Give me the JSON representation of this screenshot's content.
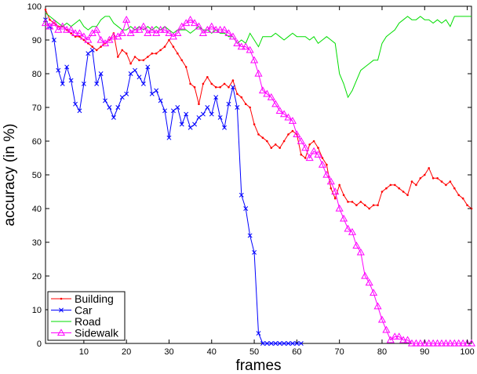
{
  "chart_data": {
    "type": "line",
    "xlabel": "frames",
    "ylabel": "accuracy (in %)",
    "xlim": [
      1,
      101
    ],
    "ylim": [
      0,
      100
    ],
    "x_ticks": [
      10,
      20,
      30,
      40,
      50,
      60,
      70,
      80,
      90,
      100
    ],
    "y_ticks": [
      0,
      10,
      20,
      30,
      40,
      50,
      60,
      70,
      80,
      90,
      100
    ],
    "grid": false,
    "legend_position": "bottom-left",
    "series": [
      {
        "name": "Building",
        "color": "#ff0000",
        "marker": "dot",
        "x": [
          1,
          2,
          3,
          4,
          5,
          6,
          7,
          8,
          9,
          10,
          11,
          12,
          13,
          14,
          15,
          16,
          17,
          18,
          19,
          20,
          21,
          22,
          23,
          24,
          25,
          26,
          27,
          28,
          29,
          30,
          31,
          32,
          33,
          34,
          35,
          36,
          37,
          38,
          39,
          40,
          41,
          42,
          43,
          44,
          45,
          46,
          47,
          48,
          49,
          50,
          51,
          52,
          53,
          54,
          55,
          56,
          57,
          58,
          59,
          60,
          61,
          62,
          63,
          64,
          65,
          66,
          67,
          68,
          69,
          70,
          71,
          72,
          73,
          74,
          75,
          76,
          77,
          78,
          79,
          80,
          81,
          82,
          83,
          84,
          85,
          86,
          87,
          88,
          89,
          90,
          91,
          92,
          93,
          94,
          95,
          96,
          97,
          98,
          99,
          100,
          101
        ],
        "y": [
          99,
          96,
          95,
          94,
          94,
          93,
          92,
          91,
          91,
          90,
          89,
          88,
          87,
          88,
          89,
          90,
          92,
          85,
          87,
          86,
          83,
          85,
          84,
          84,
          85,
          86,
          86,
          87,
          88,
          90,
          88,
          86,
          84,
          82,
          77,
          76,
          71,
          77,
          79,
          77,
          76,
          76,
          77,
          76,
          78,
          74,
          73,
          71,
          70,
          65,
          62,
          61,
          60,
          58,
          59,
          58,
          60,
          62,
          63,
          62,
          56,
          55,
          59,
          60,
          58,
          55,
          53,
          46,
          43,
          47,
          44,
          42,
          42,
          41,
          42,
          41,
          40,
          41,
          41,
          45,
          46,
          47,
          47,
          46,
          45,
          44,
          48,
          47,
          49,
          50,
          52,
          49,
          49,
          48,
          47,
          48,
          46,
          44,
          43,
          41,
          40
        ]
      },
      {
        "name": "Car",
        "color": "#0000ff",
        "marker": "x",
        "x": [
          1,
          2,
          3,
          4,
          5,
          6,
          7,
          8,
          9,
          10,
          11,
          12,
          13,
          14,
          15,
          16,
          17,
          18,
          19,
          20,
          21,
          22,
          23,
          24,
          25,
          26,
          27,
          28,
          29,
          30,
          31,
          32,
          33,
          34,
          35,
          36,
          37,
          38,
          39,
          40,
          41,
          42,
          43,
          44,
          45,
          46,
          47,
          48,
          49,
          50,
          51,
          52,
          53,
          54,
          55,
          56,
          57,
          58,
          59,
          60,
          61
        ],
        "y": [
          96,
          94,
          90,
          81,
          77,
          82,
          78,
          71,
          69,
          77,
          86,
          87,
          77,
          80,
          72,
          70,
          67,
          70,
          73,
          74,
          80,
          81,
          79,
          77,
          82,
          74,
          75,
          72,
          69,
          61,
          69,
          70,
          65,
          68,
          64,
          65,
          67,
          68,
          70,
          68,
          73,
          67,
          64,
          71,
          76,
          70,
          44,
          40,
          32,
          27,
          3,
          0,
          0,
          0,
          0,
          0,
          0,
          0,
          0,
          0,
          0
        ]
      },
      {
        "name": "Road",
        "color": "#00dd00",
        "marker": "none",
        "x": [
          1,
          2,
          3,
          4,
          5,
          6,
          7,
          8,
          9,
          10,
          11,
          12,
          13,
          14,
          15,
          16,
          17,
          18,
          19,
          20,
          21,
          22,
          23,
          24,
          25,
          26,
          27,
          28,
          29,
          30,
          31,
          32,
          33,
          34,
          35,
          36,
          37,
          38,
          39,
          40,
          41,
          42,
          43,
          44,
          45,
          46,
          47,
          48,
          49,
          50,
          51,
          52,
          53,
          54,
          55,
          56,
          57,
          58,
          59,
          60,
          61,
          62,
          63,
          64,
          65,
          66,
          67,
          68,
          69,
          70,
          71,
          72,
          73,
          74,
          75,
          76,
          77,
          78,
          79,
          80,
          81,
          82,
          83,
          84,
          85,
          86,
          87,
          88,
          89,
          90,
          91,
          92,
          93,
          94,
          95,
          96,
          97,
          98,
          99,
          100,
          101
        ],
        "y": [
          98,
          97,
          96,
          95,
          94,
          95,
          94,
          95,
          96,
          94,
          93,
          94,
          94,
          96,
          97,
          97,
          95,
          94,
          93,
          93,
          94,
          93,
          94,
          93,
          94,
          93,
          94,
          93,
          94,
          93,
          92,
          93,
          93,
          93,
          92,
          93,
          94,
          93,
          93,
          92,
          93,
          92,
          92,
          91,
          91,
          89,
          90,
          89,
          92,
          90,
          88,
          91,
          91,
          91,
          92,
          91,
          90,
          91,
          92,
          91,
          91,
          91,
          90,
          91,
          89,
          90,
          91,
          90,
          89,
          80,
          77,
          73,
          75,
          78,
          81,
          82,
          83,
          84,
          84,
          89,
          91,
          92,
          93,
          95,
          96,
          97,
          96,
          96,
          97,
          96,
          96,
          95,
          96,
          95,
          96,
          94,
          97,
          97,
          97,
          97,
          97
        ]
      },
      {
        "name": "Sidewalk",
        "color": "#ff00ff",
        "marker": "triangle",
        "x": [
          1,
          2,
          3,
          4,
          5,
          6,
          7,
          8,
          9,
          10,
          11,
          12,
          13,
          14,
          15,
          16,
          17,
          18,
          19,
          20,
          21,
          22,
          23,
          24,
          25,
          26,
          27,
          28,
          29,
          30,
          31,
          32,
          33,
          34,
          35,
          36,
          37,
          38,
          39,
          40,
          41,
          42,
          43,
          44,
          45,
          46,
          47,
          48,
          49,
          50,
          51,
          52,
          53,
          54,
          55,
          56,
          57,
          58,
          59,
          60,
          61,
          62,
          63,
          64,
          65,
          66,
          67,
          68,
          69,
          70,
          71,
          72,
          73,
          74,
          75,
          76,
          77,
          78,
          79,
          80,
          81,
          82,
          83,
          84,
          85,
          86,
          87,
          88,
          89,
          90,
          91,
          92,
          93,
          94,
          95,
          96,
          97,
          98,
          99,
          100,
          101
        ],
        "y": [
          95,
          94,
          95,
          93,
          94,
          93,
          93,
          92,
          92,
          91,
          90,
          92,
          93,
          90,
          89,
          90,
          91,
          91,
          92,
          96,
          92,
          93,
          93,
          94,
          92,
          93,
          92,
          93,
          93,
          92,
          91,
          92,
          94,
          95,
          96,
          95,
          94,
          92,
          93,
          94,
          93,
          93,
          93,
          92,
          91,
          89,
          88,
          88,
          87,
          84,
          80,
          75,
          74,
          73,
          71,
          69,
          68,
          67,
          66,
          62,
          60,
          58,
          55,
          57,
          56,
          53,
          50,
          48,
          45,
          40,
          37,
          34,
          33,
          29,
          27,
          20,
          18,
          15,
          11,
          7,
          4,
          1,
          2,
          2,
          1,
          1,
          0,
          0,
          0,
          0,
          0,
          0,
          0,
          0,
          0,
          0,
          0,
          0,
          0,
          0,
          0
        ]
      }
    ]
  }
}
